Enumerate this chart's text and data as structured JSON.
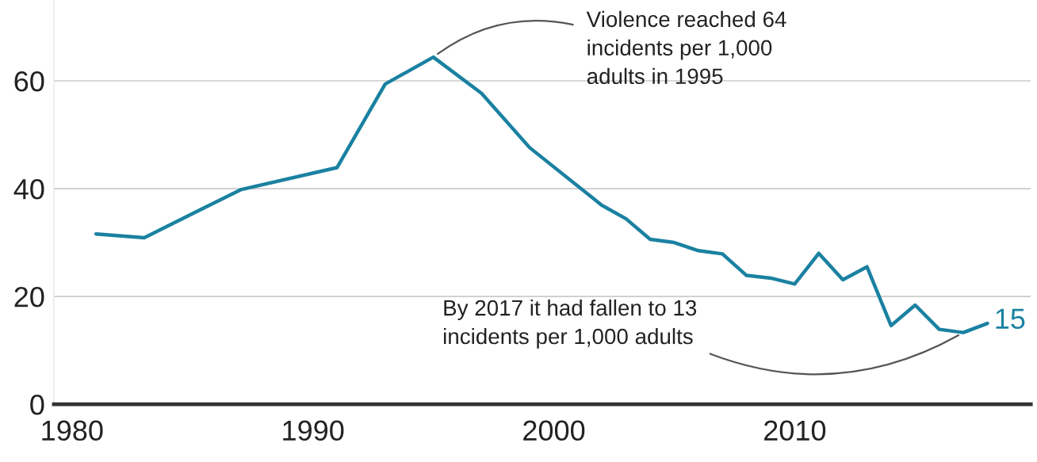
{
  "chart_data": {
    "type": "line",
    "x": [
      1981,
      1983,
      1987,
      1991,
      1993,
      1995,
      1997,
      1999,
      2002,
      2003,
      2004,
      2005,
      2006,
      2007,
      2008,
      2009,
      2010,
      2011,
      2012,
      2013,
      2014,
      2015,
      2016,
      2017,
      2018
    ],
    "series": [
      {
        "color": "#1a81a1",
        "values": [
          31.6,
          30.9,
          39.8,
          43.9,
          59.4,
          64.4,
          57.7,
          47.6,
          36.9,
          34.4,
          30.6,
          30.0,
          28.5,
          27.9,
          23.9,
          23.4,
          22.3,
          28.0,
          23.1,
          25.5,
          14.6,
          18.4,
          13.9,
          13.3,
          15
        ],
        "value_labels": [
          null,
          null,
          null,
          null,
          null,
          null,
          null,
          null,
          null,
          null,
          null,
          null,
          null,
          null,
          null,
          null,
          null,
          null,
          null,
          null,
          null,
          null,
          null,
          null,
          "15"
        ]
      }
    ],
    "xlim": [
      1979.25,
      2019.8
    ],
    "xticks": [
      1980,
      1990,
      2000,
      2010
    ],
    "ylim": [
      0,
      75
    ],
    "yticks": [
      0,
      20,
      40,
      60
    ],
    "grid": "y",
    "marker": "none",
    "line_style": "solid",
    "annotations": [
      {
        "text": "Violence reached 64\nincidents per 1,000\nadults in 1995",
        "x": 1995,
        "y": 64.4
      },
      {
        "text": "By 2017 it had fallen to 13\nincidents per 1,000 adults",
        "x": 2017,
        "y": 13.3
      }
    ]
  }
}
